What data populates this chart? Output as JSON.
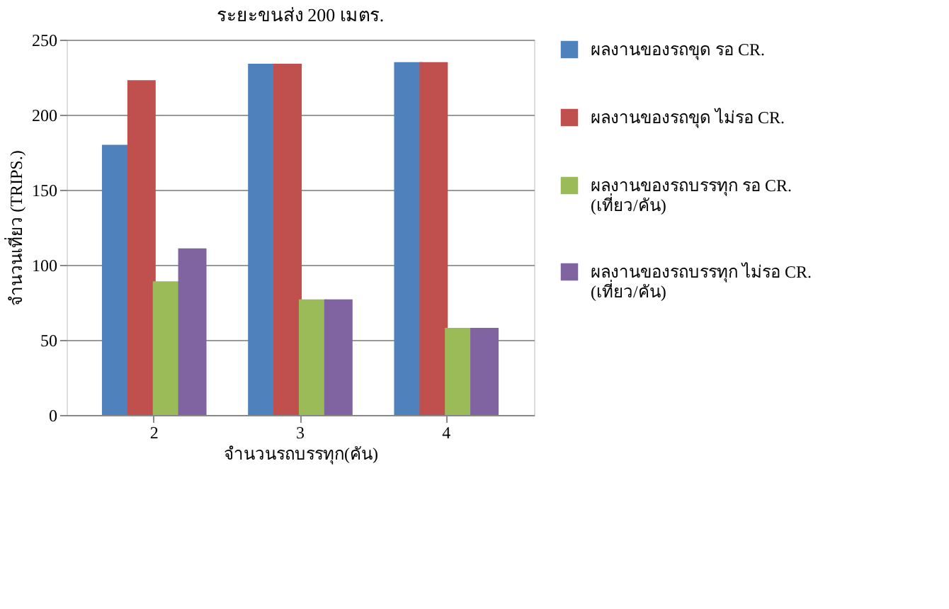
{
  "chart_data": {
    "type": "bar",
    "title": "ระยะขนส่ง 200 เมตร.",
    "xlabel": "จำนวนรถบรรทุก(คัน)",
    "ylabel": "จำนวนเที่ยว (TRIPS.)",
    "categories": [
      "2",
      "3",
      "4"
    ],
    "series": [
      {
        "name": "ผลงานของรถขุด รอ CR.",
        "color": "#4f81bd",
        "values": [
          180,
          234,
          235
        ]
      },
      {
        "name": "ผลงานของรถขุด ไม่รอ CR.",
        "color": "#c0504d",
        "values": [
          223,
          234,
          235
        ]
      },
      {
        "name": "ผลงานของรถบรรทุก รอ CR.\n(เที่ยว/คัน)",
        "color": "#9bbb59",
        "values": [
          89,
          77,
          58
        ]
      },
      {
        "name": "ผลงานของรถบรรทุก ไม่รอ CR.\n(เที่ยว/คัน)",
        "color": "#8064a2",
        "values": [
          111,
          77,
          58
        ]
      }
    ],
    "ylim": [
      0,
      250
    ],
    "yticks": [
      0,
      50,
      100,
      150,
      200,
      250
    ],
    "grid": "y",
    "legend": "right"
  }
}
